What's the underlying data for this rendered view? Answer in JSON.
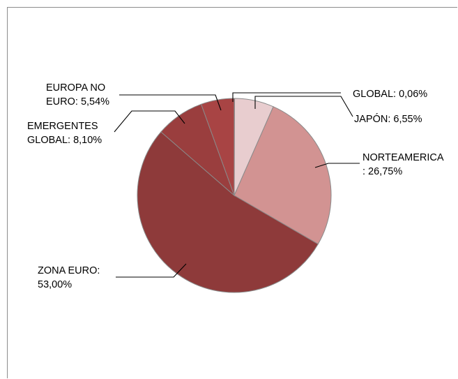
{
  "chart_data": {
    "type": "pie",
    "title": "",
    "slices": [
      {
        "name": "GLOBAL",
        "value": 0.06,
        "label_lines": [
          "GLOBAL: 0,06%"
        ],
        "color": "#e8c8ca"
      },
      {
        "name": "JAPÓN",
        "value": 6.55,
        "label_lines": [
          "JAPÓN: 6,55%"
        ],
        "color": "#e8cdcf"
      },
      {
        "name": "NORTEAMERICA",
        "value": 26.75,
        "label_lines": [
          "NORTEAMERICA",
          ": 26,75%"
        ],
        "color": "#d29392"
      },
      {
        "name": "ZONA EURO",
        "value": 53.0,
        "label_lines": [
          "ZONA EURO:",
          "53,00%"
        ],
        "color": "#8e3a3a"
      },
      {
        "name": "EMERGENTES GLOBAL",
        "value": 8.1,
        "label_lines": [
          "EMERGENTES",
          "GLOBAL: 8,10%"
        ],
        "color": "#9a3e3e"
      },
      {
        "name": "EUROPA NO EURO",
        "value": 5.54,
        "label_lines": [
          "EUROPA NO",
          "EURO: 5,54%"
        ],
        "color": "#a84444"
      }
    ],
    "legend": "none",
    "data_labels": "outside with leader lines"
  }
}
